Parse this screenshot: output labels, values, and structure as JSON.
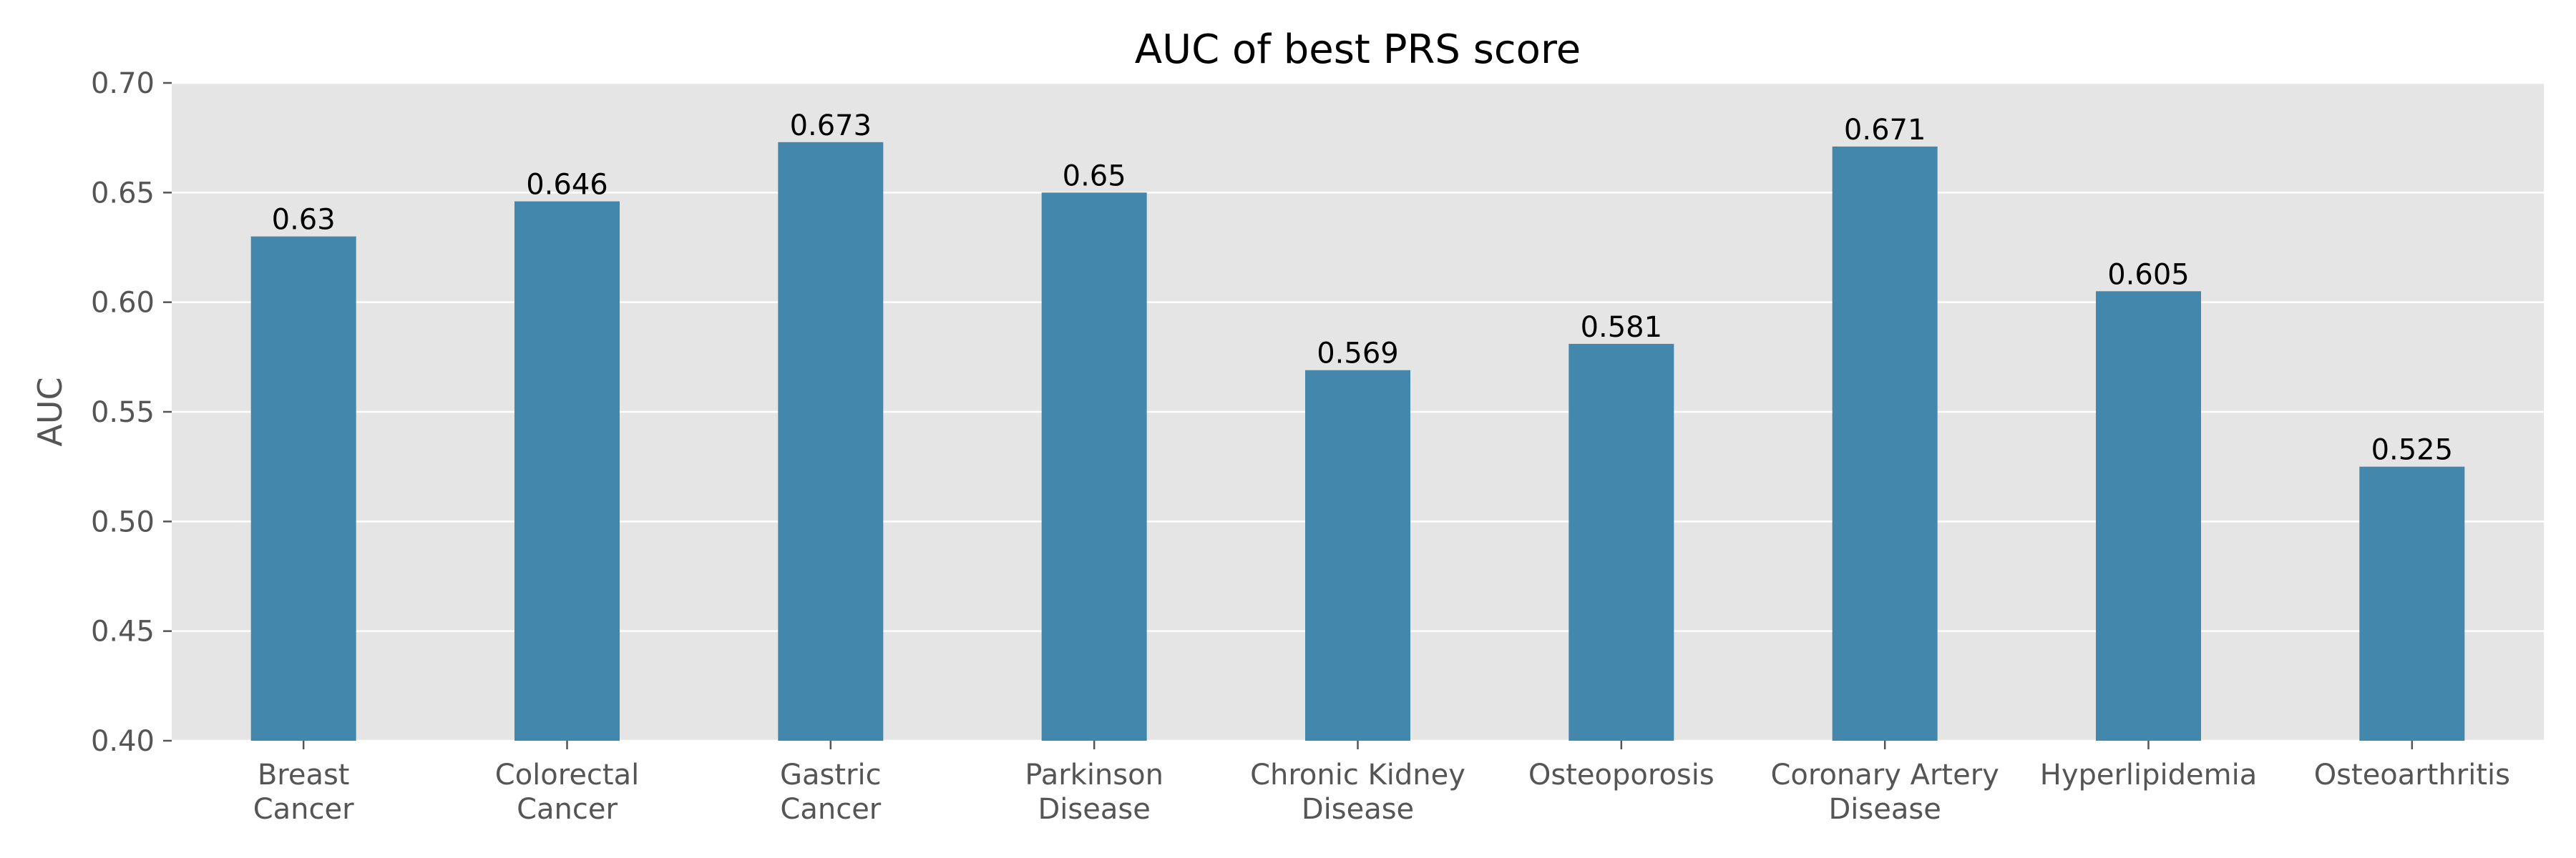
{
  "chart_data": {
    "type": "bar",
    "title": "AUC of best PRS score",
    "xlabel": "",
    "ylabel": "AUC",
    "ylim": [
      0.4,
      0.7
    ],
    "yticks": [
      "0.40",
      "0.45",
      "0.50",
      "0.55",
      "0.60",
      "0.65",
      "0.70"
    ],
    "categories": [
      [
        "Breast",
        "Cancer"
      ],
      [
        "Colorectal",
        "Cancer"
      ],
      [
        "Gastric",
        "Cancer"
      ],
      [
        "Parkinson",
        "Disease"
      ],
      [
        "Chronic Kidney",
        "Disease"
      ],
      [
        "Osteoporosis"
      ],
      [
        "Coronary Artery",
        "Disease"
      ],
      [
        "Hyperlipidemia"
      ],
      [
        "Osteoarthritis"
      ]
    ],
    "values": [
      0.63,
      0.646,
      0.673,
      0.65,
      0.569,
      0.581,
      0.671,
      0.605,
      0.525
    ],
    "data_labels": [
      "0.63",
      "0.646",
      "0.673",
      "0.65",
      "0.569",
      "0.581",
      "0.671",
      "0.605",
      "0.525"
    ],
    "grid": true,
    "colors": {
      "bar": "#4487ad",
      "plot_background": "#e5e5e5",
      "grid": "#ffffff"
    }
  }
}
